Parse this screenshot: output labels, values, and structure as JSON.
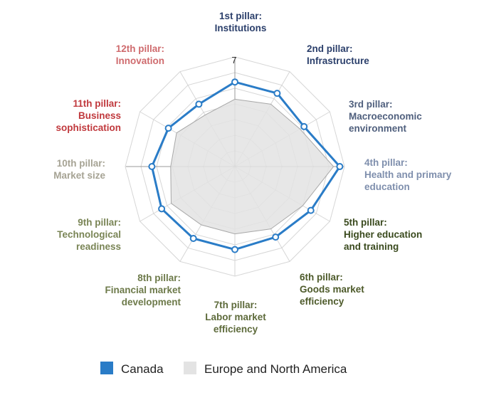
{
  "chart_data": {
    "type": "radar",
    "r_min": 0,
    "r_max": 7,
    "tick_labels": [
      "7"
    ],
    "axes": [
      {
        "label": [
          "1st pillar:",
          "Institutions"
        ],
        "color": "#2b3f6b"
      },
      {
        "label": [
          "2nd pillar:",
          "Infrastructure"
        ],
        "color": "#2b3f6b"
      },
      {
        "label": [
          "3rd pillar:",
          "Macroeconomic",
          "environment"
        ],
        "color": "#4f5f7d"
      },
      {
        "label": [
          "4th pillar:",
          "Health and primary",
          "education"
        ],
        "color": "#7f8fad"
      },
      {
        "label": [
          "5th pillar:",
          "Higher education",
          "and training"
        ],
        "color": "#3a4a1e"
      },
      {
        "label": [
          "6th pillar:",
          "Goods market",
          "efficiency"
        ],
        "color": "#4d5a2a"
      },
      {
        "label": [
          "7th pillar:",
          "Labor market",
          "efficiency"
        ],
        "color": "#5d6a3a"
      },
      {
        "label": [
          "8th pillar:",
          "Financial market",
          "development"
        ],
        "color": "#6d7a4a"
      },
      {
        "label": [
          "9th pillar:",
          "Technological",
          "readiness"
        ],
        "color": "#7a8556"
      },
      {
        "label": [
          "10th pillar:",
          "Market size"
        ],
        "color": "#a6a394"
      },
      {
        "label": [
          "11th pillar:",
          "Business",
          "sophistication"
        ],
        "color": "#c0393d"
      },
      {
        "label": [
          "12th pillar:",
          "Innovation"
        ],
        "color": "#cf6b6e"
      }
    ],
    "series": [
      {
        "name": "Canada",
        "color": "#2a7cc7",
        "values": [
          5.4,
          5.4,
          5.1,
          6.7,
          5.6,
          5.2,
          5.3,
          5.3,
          5.4,
          5.3,
          4.9,
          4.6
        ]
      },
      {
        "name": "Europe and North America",
        "color": "#e3e3e3",
        "values": [
          4.3,
          4.6,
          4.8,
          6.3,
          5.0,
          4.6,
          4.3,
          4.3,
          4.7,
          4.1,
          4.3,
          3.8
        ]
      }
    ],
    "legend": {
      "position": "bottom"
    }
  }
}
